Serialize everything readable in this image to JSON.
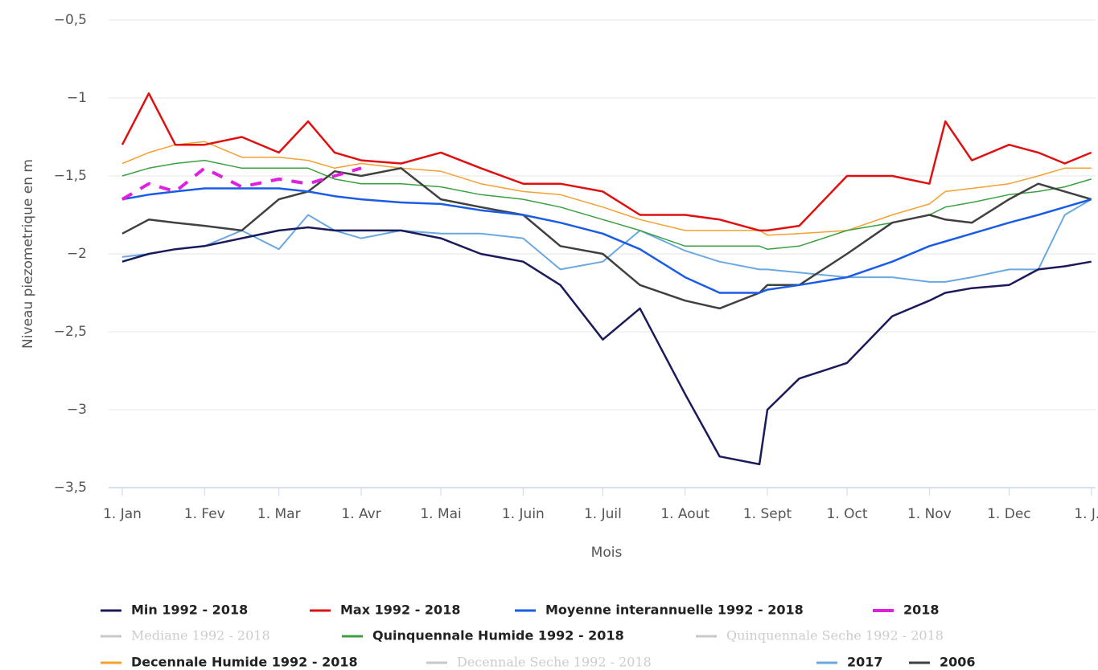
{
  "chart_data": {
    "type": "line",
    "y_label": "Niveau piezometrique en m",
    "x_label": "Mois",
    "xlim": [
      0,
      366
    ],
    "xticks": [
      {
        "value": 0,
        "label": "1. Jan"
      },
      {
        "value": 31,
        "label": "1. Fev"
      },
      {
        "value": 59,
        "label": "1. Mar"
      },
      {
        "value": 90,
        "label": "1. Avr"
      },
      {
        "value": 120,
        "label": "1. Mai"
      },
      {
        "value": 151,
        "label": "1. Juin"
      },
      {
        "value": 181,
        "label": "1. Juil"
      },
      {
        "value": 212,
        "label": "1. Aout"
      },
      {
        "value": 243,
        "label": "1. Sept"
      },
      {
        "value": 273,
        "label": "1. Oct"
      },
      {
        "value": 304,
        "label": "1. Nov"
      },
      {
        "value": 334,
        "label": "1. Dec"
      },
      {
        "value": 365,
        "label": "1. J..."
      }
    ],
    "ylim": [
      -3.5,
      -0.5
    ],
    "yticks": [
      {
        "value": -3.5,
        "label": "−3,5"
      },
      {
        "value": -3,
        "label": "−3"
      },
      {
        "value": -2.5,
        "label": "−2,5"
      },
      {
        "value": -2,
        "label": "−2"
      },
      {
        "value": -1.5,
        "label": "−1,5"
      },
      {
        "value": -1,
        "label": "−1"
      },
      {
        "value": -0.5,
        "label": "−0,5"
      }
    ],
    "grid": true,
    "x": [
      0,
      10,
      20,
      31,
      45,
      59,
      70,
      80,
      90,
      105,
      120,
      135,
      151,
      165,
      181,
      195,
      212,
      225,
      240,
      243,
      255,
      273,
      290,
      304,
      310,
      320,
      334,
      345,
      355,
      365
    ],
    "series": [
      {
        "name": "Min 1992 - 2018",
        "color": "#1b1b5c",
        "width": 2.5,
        "values": [
          -2.05,
          -2.0,
          -1.97,
          -1.95,
          -1.9,
          -1.85,
          -1.83,
          -1.85,
          -1.85,
          -1.85,
          -1.9,
          -2.0,
          -2.05,
          -2.2,
          -2.55,
          -2.35,
          -2.9,
          -3.3,
          -3.35,
          -3.0,
          -2.8,
          -2.7,
          -2.4,
          -2.3,
          -2.25,
          -2.22,
          -2.2,
          -2.1,
          -2.08,
          -2.05
        ]
      },
      {
        "name": "Max 1992 - 2018",
        "color": "#e01010",
        "width": 2.5,
        "values": [
          -1.3,
          -0.97,
          -1.3,
          -1.3,
          -1.25,
          -1.35,
          -1.15,
          -1.35,
          -1.4,
          -1.42,
          -1.35,
          -1.45,
          -1.55,
          -1.55,
          -1.6,
          -1.75,
          -1.75,
          -1.78,
          -1.85,
          -1.85,
          -1.82,
          -1.5,
          -1.5,
          -1.55,
          -1.15,
          -1.4,
          -1.3,
          -1.35,
          -1.42,
          -1.35
        ]
      },
      {
        "name": "Moyenne interannuelle 1992 - 2018",
        "color": "#1a5ce6",
        "width": 2.5,
        "values": [
          -1.65,
          -1.62,
          -1.6,
          -1.58,
          -1.58,
          -1.58,
          -1.6,
          -1.63,
          -1.65,
          -1.67,
          -1.68,
          -1.72,
          -1.75,
          -1.8,
          -1.87,
          -1.97,
          -2.15,
          -2.25,
          -2.25,
          -2.23,
          -2.2,
          -2.15,
          -2.05,
          -1.95,
          -1.92,
          -1.87,
          -1.8,
          -1.75,
          -1.7,
          -1.65
        ]
      },
      {
        "name": "2018",
        "color": "#e020e0",
        "width": 4,
        "dash": true,
        "values": [
          -1.65,
          -1.55,
          -1.6,
          -1.45,
          -1.57,
          -1.52,
          -1.55,
          -1.5,
          -1.45,
          null,
          null,
          null,
          null,
          null,
          null,
          null,
          null,
          null,
          null,
          null,
          null,
          null,
          null,
          null,
          null,
          null,
          null,
          null,
          null,
          null
        ]
      },
      {
        "name": "Mediane 1992 - 2018",
        "color": "#c8c8c8",
        "visible": false
      },
      {
        "name": "Quinquennale Humide 1992 - 2018",
        "color": "#3aa040",
        "width": 1.5,
        "values": [
          -1.5,
          -1.45,
          -1.42,
          -1.4,
          -1.45,
          -1.45,
          -1.45,
          -1.52,
          -1.55,
          -1.55,
          -1.57,
          -1.62,
          -1.65,
          -1.7,
          -1.78,
          -1.85,
          -1.95,
          -1.95,
          -1.95,
          -1.97,
          -1.95,
          -1.85,
          -1.8,
          -1.75,
          -1.7,
          -1.67,
          -1.62,
          -1.6,
          -1.57,
          -1.52
        ]
      },
      {
        "name": "Quinquennale Seche 1992 - 2018",
        "color": "#c8c8c8",
        "visible": false
      },
      {
        "name": "Decennale Humide 1992 - 2018",
        "color": "#f5a030",
        "width": 1.5,
        "values": [
          -1.42,
          -1.35,
          -1.3,
          -1.28,
          -1.38,
          -1.38,
          -1.4,
          -1.45,
          -1.42,
          -1.45,
          -1.47,
          -1.55,
          -1.6,
          -1.62,
          -1.7,
          -1.78,
          -1.85,
          -1.85,
          -1.85,
          -1.88,
          -1.87,
          -1.85,
          -1.75,
          -1.68,
          -1.6,
          -1.58,
          -1.55,
          -1.5,
          -1.45,
          -1.45
        ]
      },
      {
        "name": "Decennale Seche 1992 - 2018",
        "color": "#c8c8c8",
        "visible": false
      },
      {
        "name": "2017",
        "color": "#6aa8e0",
        "width": 2,
        "values": [
          -2.02,
          -2.0,
          -1.97,
          -1.95,
          -1.85,
          -1.97,
          -1.75,
          -1.85,
          -1.9,
          -1.85,
          -1.87,
          -1.87,
          -1.9,
          -2.1,
          -2.05,
          -1.85,
          -1.98,
          -2.05,
          -2.1,
          -2.1,
          -2.12,
          -2.15,
          -2.15,
          -2.18,
          -2.18,
          -2.15,
          -2.1,
          -2.1,
          -1.75,
          -1.65
        ]
      },
      {
        "name": "2006",
        "color": "#404040",
        "width": 2.5,
        "values": [
          -1.87,
          -1.78,
          -1.8,
          -1.82,
          -1.85,
          -1.65,
          -1.6,
          -1.47,
          -1.5,
          -1.45,
          -1.65,
          -1.7,
          -1.75,
          -1.95,
          -2.0,
          -2.2,
          -2.3,
          -2.35,
          -2.25,
          -2.2,
          -2.2,
          -2.0,
          -1.8,
          -1.75,
          -1.78,
          -1.8,
          -1.65,
          -1.55,
          -1.6,
          -1.65
        ]
      }
    ]
  }
}
